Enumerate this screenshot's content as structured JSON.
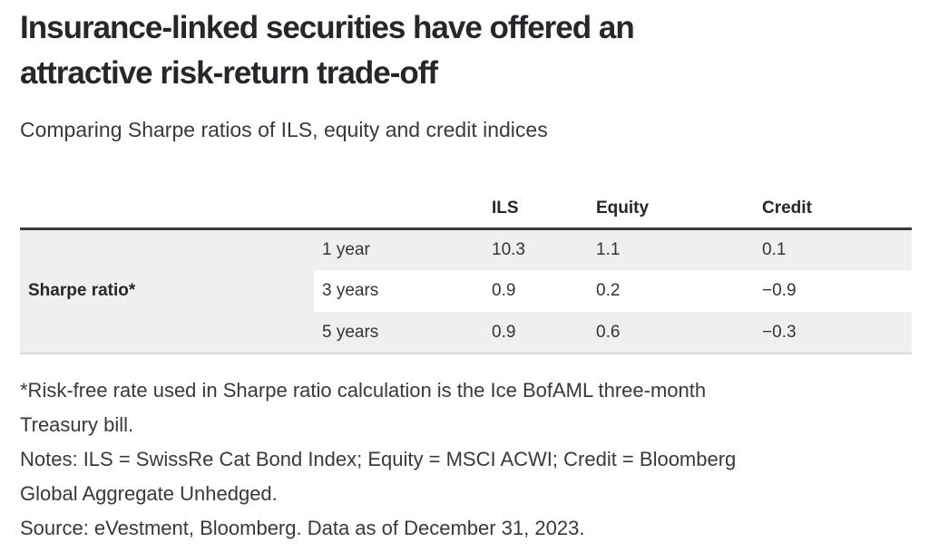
{
  "header": {
    "title_line1": "Insurance-linked securities have offered an",
    "title_line2": "attractive risk-return trade-off",
    "subtitle": "Comparing Sharpe ratios of ILS, equity and credit indices"
  },
  "table": {
    "column_headers": [
      "ILS",
      "Equity",
      "Credit"
    ],
    "row_group_label": "Sharpe ratio*",
    "rows": [
      {
        "period": "1 year",
        "ils": "10.3",
        "equity": "1.1",
        "credit": "0.1"
      },
      {
        "period": "3 years",
        "ils": "0.9",
        "equity": "0.2",
        "credit": "−0.9"
      },
      {
        "period": "5 years",
        "ils": "0.9",
        "equity": "0.6",
        "credit": "−0.3"
      }
    ]
  },
  "footnotes": {
    "line1": "*Risk-free rate used in Sharpe ratio calculation is the Ice BofAML three-month",
    "line2": "Treasury bill.",
    "line3": "Notes: ILS = SwissRe Cat Bond Index; Equity = MSCI ACWI; Credit = Bloomberg",
    "line4": "Global Aggregate Unhedged.",
    "line5": "Source: eVestment, Bloomberg. Data as of December 31, 2023."
  },
  "colors": {
    "row_shade": "#f0eff0",
    "header_rule": "#3a3a3c",
    "bottom_rule": "#d8d8da",
    "title_text": "#26272b",
    "body_text": "#38393d"
  },
  "chart_data": {
    "type": "table",
    "title": "Insurance-linked securities have offered an attractive risk-return trade-off",
    "subtitle": "Comparing Sharpe ratios of ILS, equity and credit indices",
    "row_group_label": "Sharpe ratio*",
    "categories": [
      "1 year",
      "3 years",
      "5 years"
    ],
    "series": [
      {
        "name": "ILS",
        "values": [
          10.3,
          0.9,
          0.9
        ]
      },
      {
        "name": "Equity",
        "values": [
          1.1,
          0.2,
          0.6
        ]
      },
      {
        "name": "Credit",
        "values": [
          0.1,
          -0.9,
          -0.3
        ]
      }
    ],
    "notes": "ILS = SwissRe Cat Bond Index; Equity = MSCI ACWI; Credit = Bloomberg Global Aggregate Unhedged.",
    "footnote": "*Risk-free rate used in Sharpe ratio calculation is the Ice BofAML three-month Treasury bill.",
    "source": "Source: eVestment, Bloomberg. Data as of December 31, 2023."
  }
}
